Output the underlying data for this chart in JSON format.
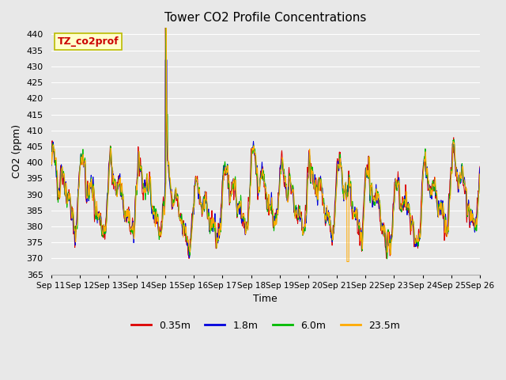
{
  "title": "Tower CO2 Profile Concentrations",
  "xlabel": "Time",
  "ylabel": "CO2 (ppm)",
  "ylim": [
    365,
    442
  ],
  "yticks": [
    365,
    370,
    375,
    380,
    385,
    390,
    395,
    400,
    405,
    410,
    415,
    420,
    425,
    430,
    435,
    440
  ],
  "annotation_text": "TZ_co2prof",
  "annotation_bg": "#ffffcc",
  "annotation_border": "#bbbb00",
  "annotation_text_color": "#cc0000",
  "series": [
    "0.35m",
    "1.8m",
    "6.0m",
    "23.5m"
  ],
  "colors": [
    "#dd0000",
    "#0000dd",
    "#00bb00",
    "#ffaa00"
  ],
  "bg_color": "#e8e8e8",
  "plot_bg": "#e8e8e8",
  "grid_color": "#ffffff",
  "tick_labels": [
    "Sep 11",
    "Sep 12",
    "Sep 13",
    "Sep 14",
    "Sep 15",
    "Sep 16",
    "Sep 17",
    "Sep 18",
    "Sep 19",
    "Sep 20",
    "Sep 21",
    "Sep 22",
    "Sep 23",
    "Sep 24",
    "Sep 25",
    "Sep 26"
  ],
  "seed": 12345
}
